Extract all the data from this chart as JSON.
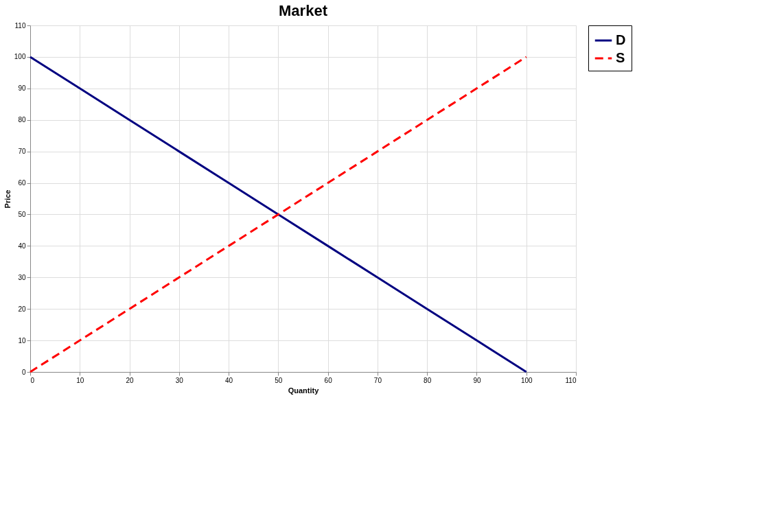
{
  "chart_data": {
    "type": "line",
    "title": "Market",
    "xlabel": "Quantity",
    "ylabel": "Price",
    "x": [
      0,
      10,
      20,
      30,
      40,
      50,
      60,
      70,
      80,
      90,
      100
    ],
    "series": [
      {
        "name": "D",
        "color": "#000080",
        "line_style": "solid",
        "values": [
          100,
          90,
          80,
          70,
          60,
          50,
          40,
          30,
          20,
          10,
          0
        ]
      },
      {
        "name": "S",
        "color": "#ff0000",
        "line_style": "dashed",
        "values": [
          0,
          10,
          20,
          30,
          40,
          50,
          60,
          70,
          80,
          90,
          100
        ]
      }
    ],
    "xlim": [
      0,
      110
    ],
    "ylim": [
      0,
      110
    ],
    "xticks": [
      0,
      10,
      20,
      30,
      40,
      50,
      60,
      70,
      80,
      90,
      100,
      110
    ],
    "yticks": [
      0,
      10,
      20,
      30,
      40,
      50,
      60,
      70,
      80,
      90,
      100,
      110
    ],
    "grid": true,
    "legend": "right",
    "marker": "none"
  }
}
